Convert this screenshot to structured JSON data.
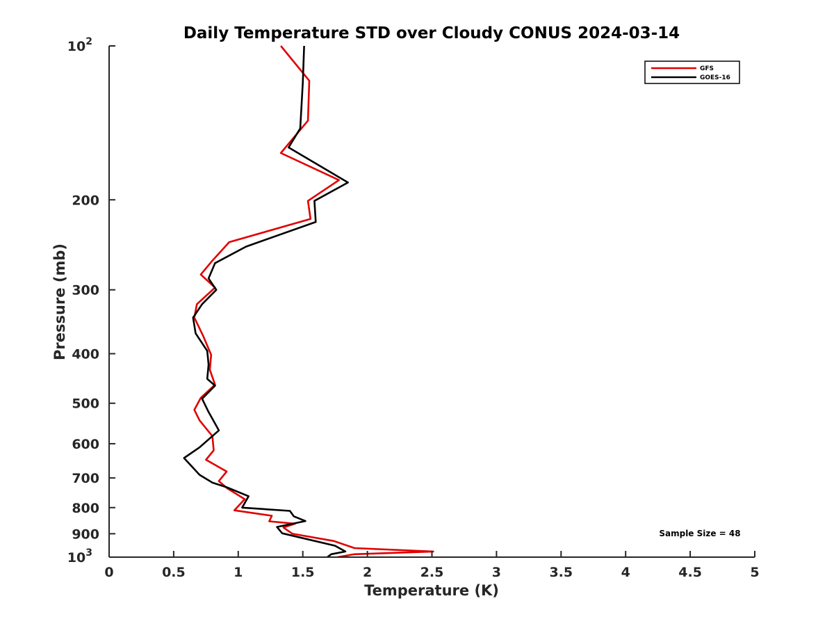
{
  "chart_data": {
    "type": "line",
    "title": "Daily Temperature STD over Cloudy CONUS 2024-03-14",
    "xlabel": "Temperature (K)",
    "ylabel": "Pressure (mb)",
    "xlim": [
      0,
      5
    ],
    "ylim": [
      100,
      1000
    ],
    "y_scale": "log",
    "y_reversed": true,
    "grid": false,
    "legend_position": "top-right",
    "x_ticks": [
      {
        "value": 0,
        "label": "0"
      },
      {
        "value": 0.5,
        "label": "0.5"
      },
      {
        "value": 1,
        "label": "1"
      },
      {
        "value": 1.5,
        "label": "1.5"
      },
      {
        "value": 2,
        "label": "2"
      },
      {
        "value": 2.5,
        "label": "2.5"
      },
      {
        "value": 3,
        "label": "3"
      },
      {
        "value": 3.5,
        "label": "3.5"
      },
      {
        "value": 4,
        "label": "4"
      },
      {
        "value": 4.5,
        "label": "4.5"
      },
      {
        "value": 5,
        "label": "5"
      }
    ],
    "y_ticks": [
      {
        "value": 100,
        "label": "10",
        "sup": "2"
      },
      {
        "value": 200,
        "label": "200"
      },
      {
        "value": 300,
        "label": "300"
      },
      {
        "value": 400,
        "label": "400"
      },
      {
        "value": 500,
        "label": "500"
      },
      {
        "value": 600,
        "label": "600"
      },
      {
        "value": 700,
        "label": "700"
      },
      {
        "value": 800,
        "label": "800"
      },
      {
        "value": 900,
        "label": "900"
      },
      {
        "value": 1000,
        "label": "10",
        "sup": "3"
      }
    ],
    "annotation": "Sample Size = 48",
    "series": [
      {
        "name": "GFS",
        "color": "#e00000",
        "points": [
          [
            1.33,
            100
          ],
          [
            1.55,
            117
          ],
          [
            1.54,
            140
          ],
          [
            1.33,
            162
          ],
          [
            1.78,
            183
          ],
          [
            1.54,
            201
          ],
          [
            1.56,
            218
          ],
          [
            0.93,
            242
          ],
          [
            0.8,
            263
          ],
          [
            0.71,
            280
          ],
          [
            0.82,
            297
          ],
          [
            0.68,
            320
          ],
          [
            0.66,
            340
          ],
          [
            0.73,
            370
          ],
          [
            0.79,
            402
          ],
          [
            0.78,
            430
          ],
          [
            0.82,
            460
          ],
          [
            0.71,
            488
          ],
          [
            0.66,
            515
          ],
          [
            0.7,
            540
          ],
          [
            0.8,
            580
          ],
          [
            0.81,
            618
          ],
          [
            0.75,
            645
          ],
          [
            0.91,
            680
          ],
          [
            0.85,
            710
          ],
          [
            0.92,
            735
          ],
          [
            1.05,
            770
          ],
          [
            0.97,
            810
          ],
          [
            1.26,
            830
          ],
          [
            1.24,
            851
          ],
          [
            1.44,
            860
          ],
          [
            1.35,
            875
          ],
          [
            1.42,
            900
          ],
          [
            1.74,
            930
          ],
          [
            1.9,
            960
          ],
          [
            2.51,
            975
          ],
          [
            1.9,
            987
          ],
          [
            1.77,
            1000
          ]
        ]
      },
      {
        "name": "GOES-16",
        "color": "#000000",
        "points": [
          [
            1.51,
            100
          ],
          [
            1.5,
            118
          ],
          [
            1.48,
            145
          ],
          [
            1.39,
            158
          ],
          [
            1.85,
            185
          ],
          [
            1.59,
            201
          ],
          [
            1.6,
            221
          ],
          [
            1.06,
            247
          ],
          [
            0.82,
            266
          ],
          [
            0.77,
            285
          ],
          [
            0.83,
            300
          ],
          [
            0.72,
            320
          ],
          [
            0.65,
            340
          ],
          [
            0.67,
            365
          ],
          [
            0.76,
            395
          ],
          [
            0.77,
            420
          ],
          [
            0.76,
            448
          ],
          [
            0.82,
            462
          ],
          [
            0.72,
            490
          ],
          [
            0.77,
            520
          ],
          [
            0.85,
            565
          ],
          [
            0.7,
            610
          ],
          [
            0.58,
            640
          ],
          [
            0.7,
            690
          ],
          [
            0.8,
            715
          ],
          [
            0.91,
            730
          ],
          [
            1.08,
            760
          ],
          [
            1.03,
            800
          ],
          [
            1.4,
            812
          ],
          [
            1.43,
            832
          ],
          [
            1.52,
            850
          ],
          [
            1.3,
            873
          ],
          [
            1.34,
            898
          ],
          [
            1.75,
            950
          ],
          [
            1.83,
            975
          ],
          [
            1.72,
            987
          ],
          [
            1.69,
            1000
          ]
        ]
      }
    ]
  }
}
